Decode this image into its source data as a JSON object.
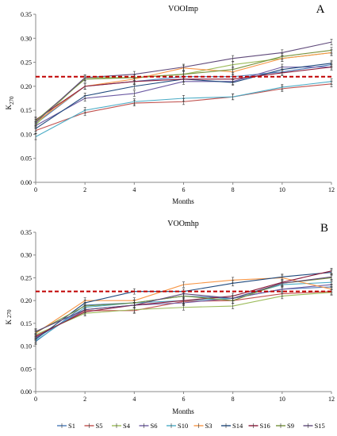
{
  "chart_data": [
    {
      "type": "line",
      "title": "VOOImp",
      "panel_label": "A",
      "xlabel": "Months",
      "ylabel": "K",
      "ylabel_sub": "270",
      "x": [
        0,
        2,
        4,
        6,
        8,
        10,
        12
      ],
      "xlim": [
        0,
        12
      ],
      "ylim": [
        0,
        0.35
      ],
      "x_ticks": [
        "0",
        "2",
        "4",
        "6",
        "8",
        "10",
        "12"
      ],
      "y_ticks": [
        "0.00",
        "0.05",
        "0.10",
        "0.15",
        "0.20",
        "0.25",
        "0.30",
        "0.35"
      ],
      "threshold": 0.22,
      "threshold_color": "#c00000",
      "error_bars": true,
      "grid": false,
      "series": [
        {
          "name": "S1",
          "color": "#4a7ab8",
          "values": [
            0.122,
            0.2,
            0.21,
            0.22,
            0.22,
            0.23,
            0.245
          ]
        },
        {
          "name": "S5",
          "color": "#c0504d",
          "values": [
            0.108,
            0.145,
            0.165,
            0.168,
            0.178,
            0.195,
            0.205
          ]
        },
        {
          "name": "S4",
          "color": "#9bbb59",
          "values": [
            0.12,
            0.218,
            0.218,
            0.225,
            0.245,
            0.258,
            0.27
          ]
        },
        {
          "name": "S6",
          "color": "#6c5aa3",
          "values": [
            0.118,
            0.175,
            0.185,
            0.21,
            0.21,
            0.24,
            0.24
          ]
        },
        {
          "name": "S10",
          "color": "#4bacc6",
          "values": [
            0.095,
            0.15,
            0.168,
            0.175,
            0.178,
            0.198,
            0.21
          ]
        },
        {
          "name": "S3",
          "color": "#f79646",
          "values": [
            0.125,
            0.2,
            0.215,
            0.238,
            0.23,
            0.258,
            0.27
          ]
        },
        {
          "name": "S14",
          "color": "#1f497d",
          "values": [
            0.112,
            0.18,
            0.2,
            0.215,
            0.208,
            0.235,
            0.248
          ]
        },
        {
          "name": "S16",
          "color": "#8b1a3a",
          "values": [
            0.13,
            0.2,
            0.21,
            0.215,
            0.215,
            0.228,
            0.24
          ]
        },
        {
          "name": "S9",
          "color": "#76923c",
          "values": [
            0.128,
            0.215,
            0.218,
            0.225,
            0.235,
            0.262,
            0.275
          ]
        },
        {
          "name": "S15",
          "color": "#5f497a",
          "values": [
            0.125,
            0.218,
            0.225,
            0.24,
            0.258,
            0.27,
            0.292
          ]
        }
      ]
    },
    {
      "type": "line",
      "title": "VOOmhp",
      "panel_label": "B",
      "xlabel": "Months",
      "ylabel": "K",
      "ylabel_sub": "270",
      "x": [
        0,
        2,
        4,
        6,
        8,
        10,
        12
      ],
      "xlim": [
        0,
        12
      ],
      "ylim": [
        0,
        0.35
      ],
      "x_ticks": [
        "0",
        "2",
        "4",
        "6",
        "8",
        "10",
        "12"
      ],
      "y_ticks": [
        "0.00",
        "0.05",
        "0.10",
        "0.15",
        "0.20",
        "0.25",
        "0.30",
        "0.35"
      ],
      "threshold": 0.22,
      "threshold_color": "#c00000",
      "error_bars": true,
      "grid": false,
      "series": [
        {
          "name": "S1",
          "color": "#4a7ab8",
          "values": [
            0.11,
            0.19,
            0.195,
            0.21,
            0.205,
            0.225,
            0.23
          ]
        },
        {
          "name": "S5",
          "color": "#c0504d",
          "values": [
            0.12,
            0.178,
            0.178,
            0.198,
            0.2,
            0.215,
            0.22
          ]
        },
        {
          "name": "S4",
          "color": "#9bbb59",
          "values": [
            0.125,
            0.172,
            0.18,
            0.185,
            0.188,
            0.21,
            0.218
          ]
        },
        {
          "name": "S6",
          "color": "#6c5aa3",
          "values": [
            0.118,
            0.18,
            0.19,
            0.195,
            0.205,
            0.225,
            0.235
          ]
        },
        {
          "name": "S10",
          "color": "#4bacc6",
          "values": [
            0.112,
            0.185,
            0.195,
            0.2,
            0.205,
            0.235,
            0.24
          ]
        },
        {
          "name": "S3",
          "color": "#f79646",
          "values": [
            0.128,
            0.2,
            0.2,
            0.235,
            0.245,
            0.25,
            0.225
          ]
        },
        {
          "name": "S14",
          "color": "#1f497d",
          "values": [
            0.115,
            0.195,
            0.22,
            0.22,
            0.238,
            0.252,
            0.262
          ]
        },
        {
          "name": "S16",
          "color": "#8b1a3a",
          "values": [
            0.122,
            0.175,
            0.19,
            0.2,
            0.21,
            0.24,
            0.265
          ]
        },
        {
          "name": "S9",
          "color": "#76923c",
          "values": [
            0.13,
            0.188,
            0.195,
            0.21,
            0.2,
            0.238,
            0.25
          ]
        },
        {
          "name": "S15",
          "color": "#5f497a",
          "values": [
            0.132,
            0.18,
            0.19,
            0.215,
            0.205,
            0.238,
            0.252
          ]
        }
      ]
    }
  ],
  "legend": {
    "position": "bottom",
    "items": [
      {
        "label": "S1",
        "color": "#4a7ab8"
      },
      {
        "label": "S5",
        "color": "#c0504d"
      },
      {
        "label": "S4",
        "color": "#9bbb59"
      },
      {
        "label": "S6",
        "color": "#6c5aa3"
      },
      {
        "label": "S10",
        "color": "#4bacc6"
      },
      {
        "label": "S3",
        "color": "#f79646"
      },
      {
        "label": "S14",
        "color": "#1f497d"
      },
      {
        "label": "S16",
        "color": "#8b1a3a"
      },
      {
        "label": "S9",
        "color": "#76923c"
      },
      {
        "label": "S15",
        "color": "#5f497a"
      }
    ]
  }
}
